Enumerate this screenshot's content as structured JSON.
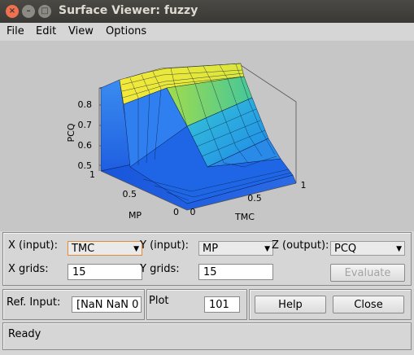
{
  "window": {
    "title": "Surface Viewer: fuzzy"
  },
  "menu": [
    "File",
    "Edit",
    "View",
    "Options"
  ],
  "plot": {
    "z_label": "PCQ",
    "x_label": "TMC",
    "y_label": "MP",
    "z_ticks": [
      "0.5",
      "0.6",
      "0.7",
      "0.8"
    ],
    "x_ticks": [
      "0",
      "0.5",
      "1"
    ],
    "y_ticks": [
      "1",
      "0.5",
      "0"
    ]
  },
  "controls": {
    "x_input_label": "X (input):",
    "x_input_value": "TMC",
    "y_input_label": "Y (input):",
    "y_input_value": "MP",
    "z_output_label": "Z (output):",
    "z_output_value": "PCQ",
    "x_grids_label": "X grids:",
    "x_grids_value": "15",
    "y_grids_label": "Y grids:",
    "y_grids_value": "15",
    "evaluate_label": "Evaluate",
    "ref_input_label": "Ref. Input:",
    "ref_input_value": "[NaN NaN 0",
    "plot_points_label": "Plot",
    "plot_points_value": "101",
    "help_label": "Help",
    "close_label": "Close"
  },
  "status": {
    "text": "Ready"
  }
}
